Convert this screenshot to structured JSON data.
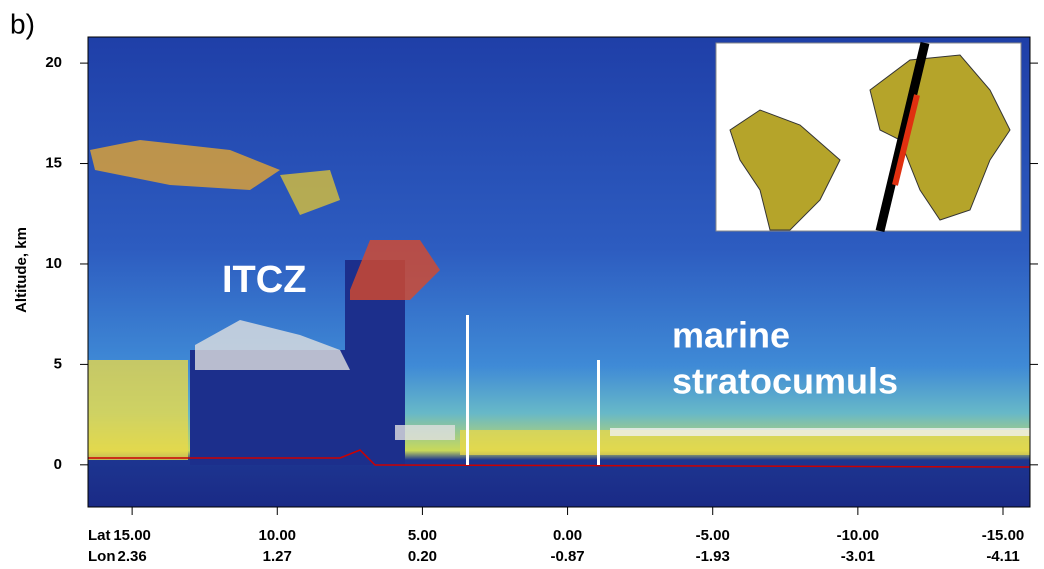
{
  "chart_data": {
    "type": "image",
    "panel_label": "b)",
    "ylabel": "Altitude, km",
    "ylim": [
      -2.1,
      21.3
    ],
    "yticks": [
      0,
      5,
      10,
      15,
      20
    ],
    "xlim": [
      16.52,
      -15.93
    ],
    "xticks": [
      {
        "value": 15,
        "label": "15.00"
      },
      {
        "value": 10,
        "label": "10.00"
      },
      {
        "value": 5,
        "label": "5.00"
      },
      {
        "value": 0,
        "label": "0.00"
      },
      {
        "value": -5,
        "label": "-5.00"
      },
      {
        "value": -10,
        "label": "-10.00"
      },
      {
        "value": -15,
        "label": "-15.00"
      }
    ],
    "x_row_label": "Lat",
    "x2_row_label": "Lon",
    "x2_labels": [
      "2.36",
      "1.27",
      "0.20",
      "-0.87",
      "-1.93",
      "-3.01",
      "-4.11"
    ],
    "annotations": [
      "ITCZ",
      "marine",
      "stratocumuls"
    ]
  }
}
